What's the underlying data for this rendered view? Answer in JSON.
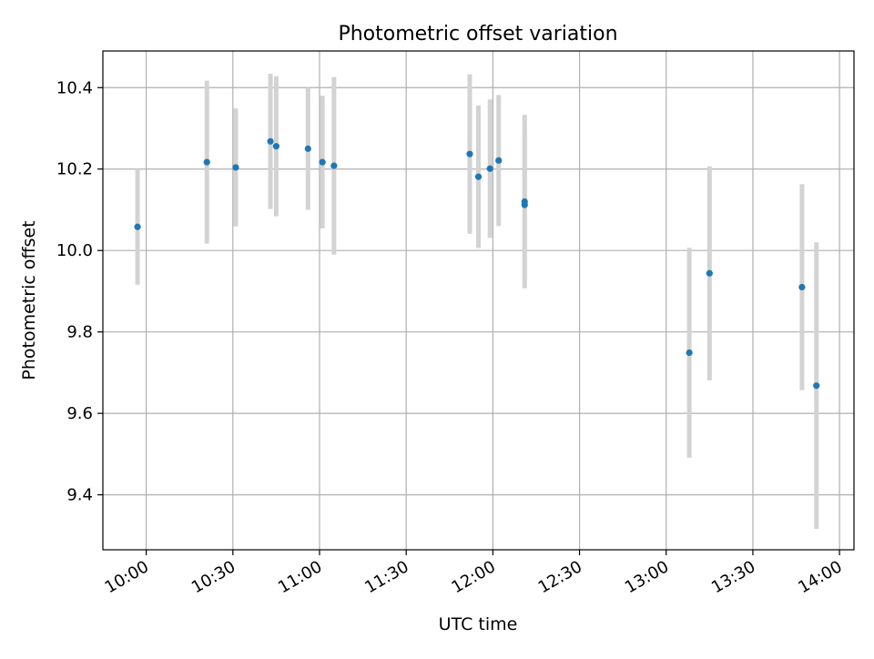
{
  "chart_data": {
    "type": "scatter",
    "title": "Photometric offset variation",
    "xlabel": "UTC time",
    "ylabel": "Photometric offset",
    "x_ticks": [
      "10:00",
      "10:30",
      "11:00",
      "11:30",
      "12:00",
      "12:30",
      "13:00",
      "13:30",
      "14:00"
    ],
    "y_ticks": [
      "9.4",
      "9.6",
      "9.8",
      "10.0",
      "10.2",
      "10.4"
    ],
    "xlim": [
      "09:45",
      "14:05"
    ],
    "ylim": [
      9.265,
      10.49
    ],
    "grid": true,
    "colors": {
      "point": "#1f77b4",
      "errorbar": "#d3d3d3",
      "grid": "#b0b0b0"
    },
    "series": [
      {
        "points": [
          {
            "x": "09:57",
            "y": 10.058,
            "err": 0.142
          },
          {
            "x": "10:21",
            "y": 10.217,
            "err": 0.2
          },
          {
            "x": "10:31",
            "y": 10.204,
            "err": 0.145
          },
          {
            "x": "10:43",
            "y": 10.268,
            "err": 0.166
          },
          {
            "x": "10:45",
            "y": 10.256,
            "err": 0.172
          },
          {
            "x": "10:56",
            "y": 10.25,
            "err": 0.15
          },
          {
            "x": "11:01",
            "y": 10.217,
            "err": 0.163
          },
          {
            "x": "11:05",
            "y": 10.208,
            "err": 0.218
          },
          {
            "x": "11:52",
            "y": 10.237,
            "err": 0.196
          },
          {
            "x": "11:55",
            "y": 10.181,
            "err": 0.175
          },
          {
            "x": "11:59",
            "y": 10.201,
            "err": 0.17
          },
          {
            "x": "12:02",
            "y": 10.221,
            "err": 0.161
          },
          {
            "x": "12:11",
            "y": 10.112,
            "err": 0.185
          },
          {
            "x": "12:11",
            "y": 10.12,
            "err": 0.213
          },
          {
            "x": "13:08",
            "y": 9.749,
            "err": 0.258
          },
          {
            "x": "13:15",
            "y": 9.944,
            "err": 0.263
          },
          {
            "x": "13:47",
            "y": 9.91,
            "err": 0.253
          },
          {
            "x": "13:52",
            "y": 9.668,
            "err": 0.352
          }
        ]
      }
    ]
  }
}
